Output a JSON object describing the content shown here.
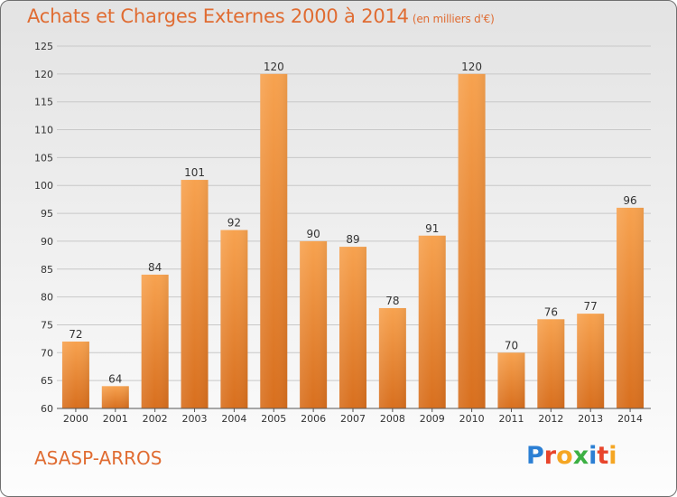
{
  "header": {
    "title": "Achats et Charges Externes 2000 à 2014",
    "unit": "(en milliers d'€)"
  },
  "footer": {
    "commune": "ASASP-ARROS",
    "logo_text": "Proxiti",
    "logo_colors": [
      "#2b7fd4",
      "#e8452c",
      "#f5a623",
      "#3cb043",
      "#2b7fd4",
      "#e8452c",
      "#f5a623"
    ]
  },
  "colors": {
    "title": "#e06c32",
    "bar_top": "#f7a24f",
    "bar_bottom": "#d86f1e",
    "grid": "#c8c8c8",
    "axis_text": "#333333"
  },
  "chart_data": {
    "type": "bar",
    "title": "Achats et Charges Externes 2000 à 2014",
    "subtitle": "(en milliers d'€)",
    "xlabel": "",
    "ylabel": "",
    "categories": [
      "2000",
      "2001",
      "2002",
      "2003",
      "2004",
      "2005",
      "2006",
      "2007",
      "2008",
      "2009",
      "2010",
      "2011",
      "2012",
      "2013",
      "2014"
    ],
    "values": [
      72,
      64,
      84,
      101,
      92,
      120,
      90,
      89,
      78,
      91,
      120,
      70,
      76,
      77,
      96
    ],
    "ylim": [
      60,
      125
    ],
    "yticks": [
      60,
      65,
      70,
      75,
      80,
      85,
      90,
      95,
      100,
      105,
      110,
      115,
      120,
      125
    ],
    "grid": true,
    "legend": "none",
    "data_labels": true
  }
}
